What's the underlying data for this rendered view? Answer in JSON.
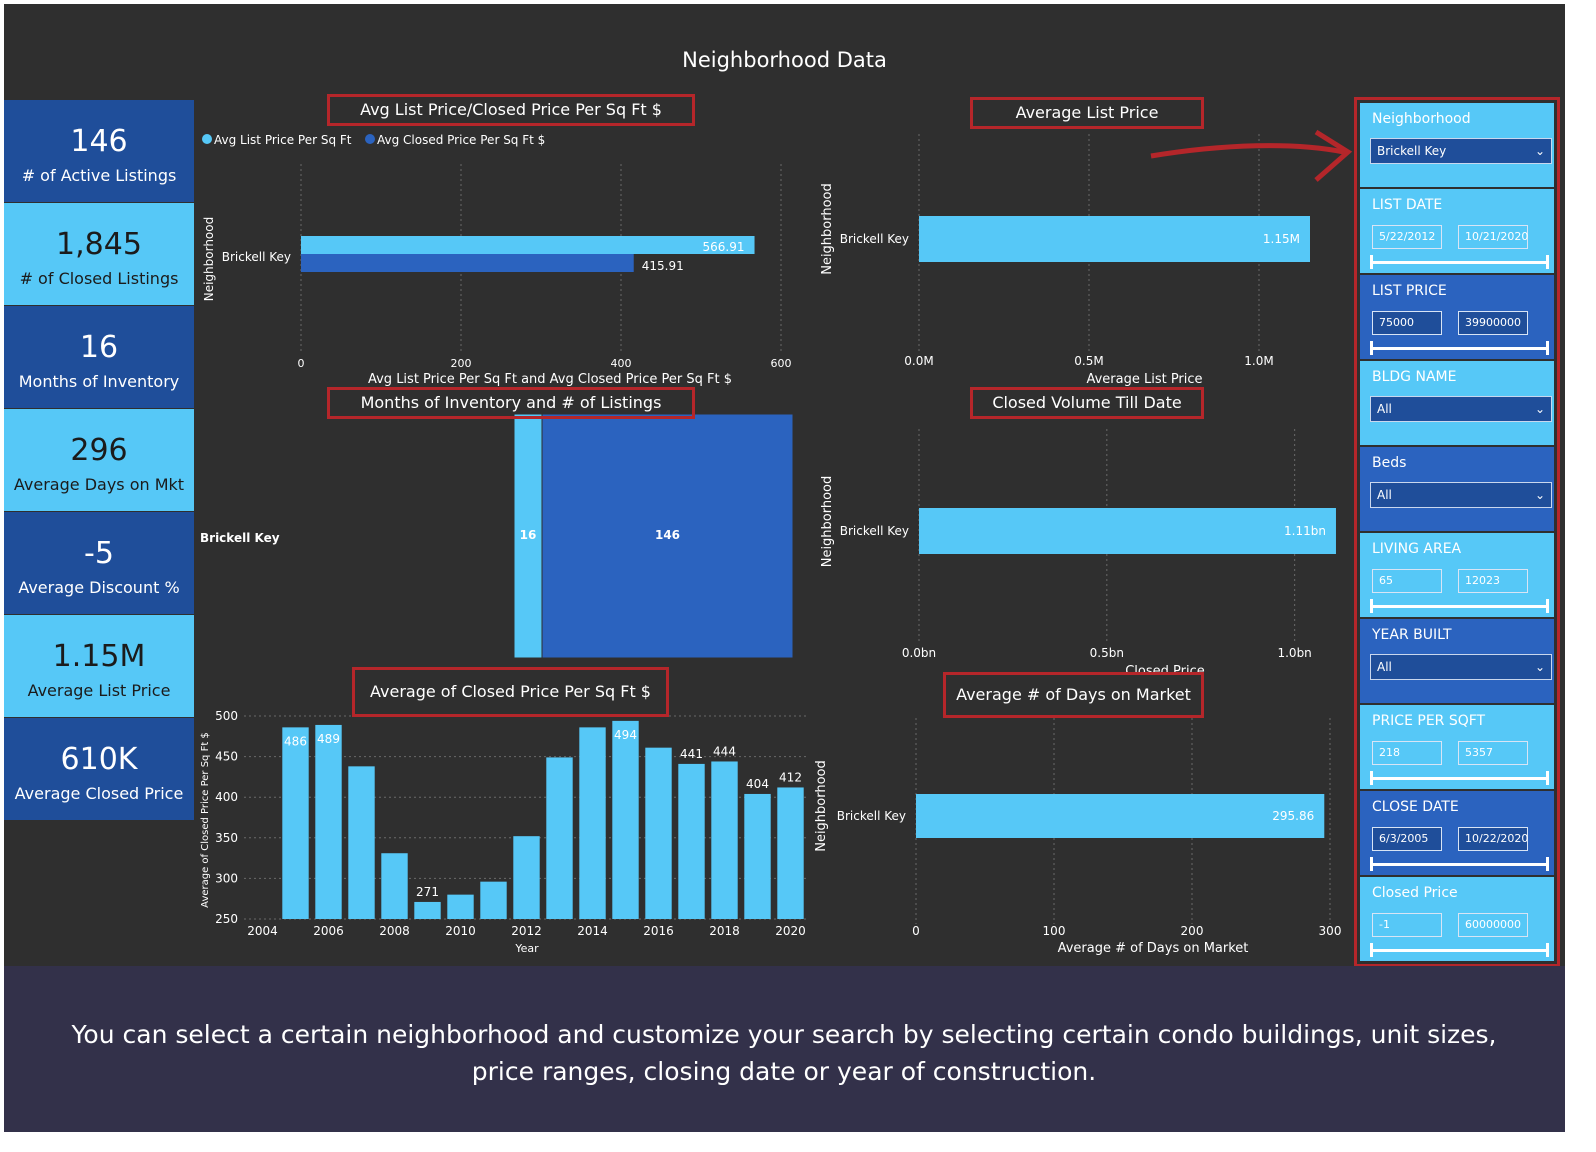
{
  "dashboard": {
    "title": "Neighborhood Data"
  },
  "kpis": [
    {
      "value": "146",
      "label": "# of Active Listings"
    },
    {
      "value": "1,845",
      "label": "# of Closed Listings"
    },
    {
      "value": "16",
      "label": "Months of Inventory"
    },
    {
      "value": "296",
      "label": "Average Days on Mkt"
    },
    {
      "value": "-5",
      "label": "Average Discount %"
    },
    {
      "value": "1.15M",
      "label": "Average List Price"
    },
    {
      "value": "610K",
      "label": "Average Closed Price"
    }
  ],
  "charts": {
    "psf": {
      "title": "Avg List Price/Closed Price Per Sq Ft $",
      "legend": [
        "Avg List Price Per Sq Ft",
        "Avg Closed Price Per Sq Ft $"
      ],
      "ylabel": "Neighborhood",
      "xlabel": "Avg List Price Per Sq Ft and Avg Closed Price Per Sq Ft $"
    },
    "avg_list": {
      "title": "Average List Price",
      "ylabel": "Neighborhood",
      "xlabel": "Average List Price"
    },
    "inventory": {
      "title": "Months of Inventory and # of Listings"
    },
    "closed_volume": {
      "title": "Closed Volume Till Date",
      "ylabel": "Neighborhood",
      "xlabel": "Closed Price"
    },
    "closed_psf": {
      "title": "Average of Closed Price Per Sq Ft $",
      "ylabel": "Average of Closed Price Per Sq Ft $",
      "xlabel": "Year"
    },
    "days": {
      "title": "Average # of Days on Market",
      "ylabel": "Neighborhood",
      "xlabel": "Average # of Days on Market"
    }
  },
  "chart_data": [
    {
      "type": "bar",
      "orientation": "horizontal",
      "categories": [
        "Brickell Key"
      ],
      "series": [
        {
          "name": "Avg List Price Per Sq Ft",
          "values": [
            566.91
          ],
          "color": "#56c8f7"
        },
        {
          "name": "Avg Closed Price Per Sq Ft $",
          "values": [
            415.91
          ],
          "color": "#2b63bf"
        }
      ],
      "data_labels": [
        "566.91",
        "415.91"
      ],
      "xlim": [
        0,
        600
      ],
      "xticks": [
        "0",
        "200",
        "400",
        "600"
      ],
      "grid": true,
      "legend": "top-left"
    },
    {
      "type": "bar",
      "orientation": "horizontal",
      "categories": [
        "Brickell Key"
      ],
      "values": [
        1150000
      ],
      "data_labels": [
        "1.15M"
      ],
      "xlim": [
        0,
        1150000
      ],
      "xticks": [
        "0.0M",
        "0.5M",
        "1.0M"
      ],
      "grid": true
    },
    {
      "type": "bar",
      "orientation": "stacked",
      "categories": [
        "Brickell Key"
      ],
      "series": [
        {
          "name": "Months of Inventory",
          "values": [
            16
          ],
          "color": "#56c8f7"
        },
        {
          "name": "# of Listings",
          "values": [
            146
          ],
          "color": "#2b63bf"
        }
      ],
      "data_labels": [
        "16",
        "146"
      ]
    },
    {
      "type": "bar",
      "orientation": "horizontal",
      "categories": [
        "Brickell Key"
      ],
      "values": [
        1110000000
      ],
      "data_labels": [
        "1.11bn"
      ],
      "xlim": [
        0,
        1150000000
      ],
      "xticks": [
        "0.0bn",
        "0.5bn",
        "1.0bn"
      ],
      "grid": true
    },
    {
      "type": "bar",
      "categories": [
        "2005",
        "2006",
        "2007",
        "2008",
        "2009",
        "2010",
        "2011",
        "2012",
        "2013",
        "2014",
        "2015",
        "2016",
        "2017",
        "2018",
        "2019",
        "2020"
      ],
      "values": [
        486,
        489,
        438,
        331,
        271,
        280,
        296,
        352,
        449,
        486,
        494,
        461,
        441,
        444,
        404,
        412
      ],
      "data_labels": [
        "486",
        "489",
        "",
        "",
        "271",
        "",
        "",
        "",
        "",
        "",
        "494",
        "",
        "441",
        "444",
        "404",
        "412"
      ],
      "xticks": [
        "2004",
        "2006",
        "2008",
        "2010",
        "2012",
        "2014",
        "2016",
        "2018",
        "2020"
      ],
      "yticks": [
        "250",
        "300",
        "350",
        "400",
        "450",
        "500"
      ],
      "ylim": [
        250,
        500
      ],
      "grid": true
    },
    {
      "type": "bar",
      "orientation": "horizontal",
      "categories": [
        "Brickell Key"
      ],
      "values": [
        295.86
      ],
      "data_labels": [
        "295.86"
      ],
      "xlim": [
        0,
        300
      ],
      "xticks": [
        "0",
        "100",
        "200",
        "300"
      ],
      "grid": true
    }
  ],
  "slicers": [
    {
      "title": "Neighborhood",
      "type": "dropdown",
      "value": "Brickell Key"
    },
    {
      "title": "LIST DATE",
      "type": "range",
      "min": "5/22/2012",
      "max": "10/21/2020"
    },
    {
      "title": "LIST PRICE",
      "type": "range",
      "min": "75000",
      "max": "39900000"
    },
    {
      "title": "BLDG NAME",
      "type": "dropdown",
      "value": "All"
    },
    {
      "title": "Beds",
      "type": "dropdown",
      "value": "All"
    },
    {
      "title": "LIVING AREA",
      "type": "range",
      "min": "65",
      "max": "12023"
    },
    {
      "title": "YEAR BUILT",
      "type": "dropdown",
      "value": "All"
    },
    {
      "title": "PRICE PER SQFT",
      "type": "range",
      "min": "218",
      "max": "5357"
    },
    {
      "title": "CLOSE DATE",
      "type": "range",
      "min": "6/3/2005",
      "max": "10/22/2020"
    },
    {
      "title": "Closed Price",
      "type": "range",
      "min": "-1",
      "max": "60000000"
    }
  ],
  "caption": "You can select a certain neighborhood and customize your search by selecting certain condo buildings, unit sizes, price ranges, closing date or year of construction.",
  "colors": {
    "background": "#2f2f2f",
    "light_blue": "#56c8f7",
    "dark_blue": "#2b63bf",
    "kpi_dark": "#1f4e9a",
    "annotation_red": "#b5262a",
    "caption_bg": "#33314a"
  },
  "icons": [
    "chevron-down-icon",
    "arrow-annotation-icon"
  ]
}
